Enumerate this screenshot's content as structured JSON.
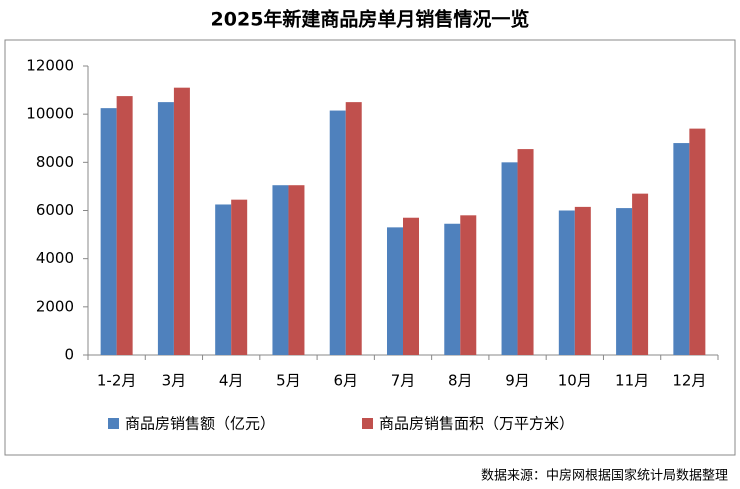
{
  "chart_data": {
    "type": "bar",
    "title": "2025年新建商品房单月销售情况一览",
    "categories": [
      "1-2月",
      "3月",
      "4月",
      "5月",
      "6月",
      "7月",
      "8月",
      "9月",
      "10月",
      "11月",
      "12月"
    ],
    "series": [
      {
        "name": "商品房销售额（亿元）",
        "color": "#4f81bd",
        "values": [
          10250,
          10500,
          6250,
          7050,
          10150,
          5300,
          5450,
          8000,
          6000,
          6100,
          8800
        ]
      },
      {
        "name": "商品房销售面积（万平方米）",
        "color": "#c0504d",
        "values": [
          10750,
          11100,
          6450,
          7050,
          10500,
          5700,
          5800,
          8550,
          6150,
          6700,
          9400
        ]
      }
    ],
    "ylim": [
      0,
      12000
    ],
    "yticks": [
      0,
      2000,
      4000,
      6000,
      8000,
      10000,
      12000
    ],
    "grid": false,
    "legend": "bottom",
    "source": "数据来源：中房网根据国家统计局数据整理"
  }
}
